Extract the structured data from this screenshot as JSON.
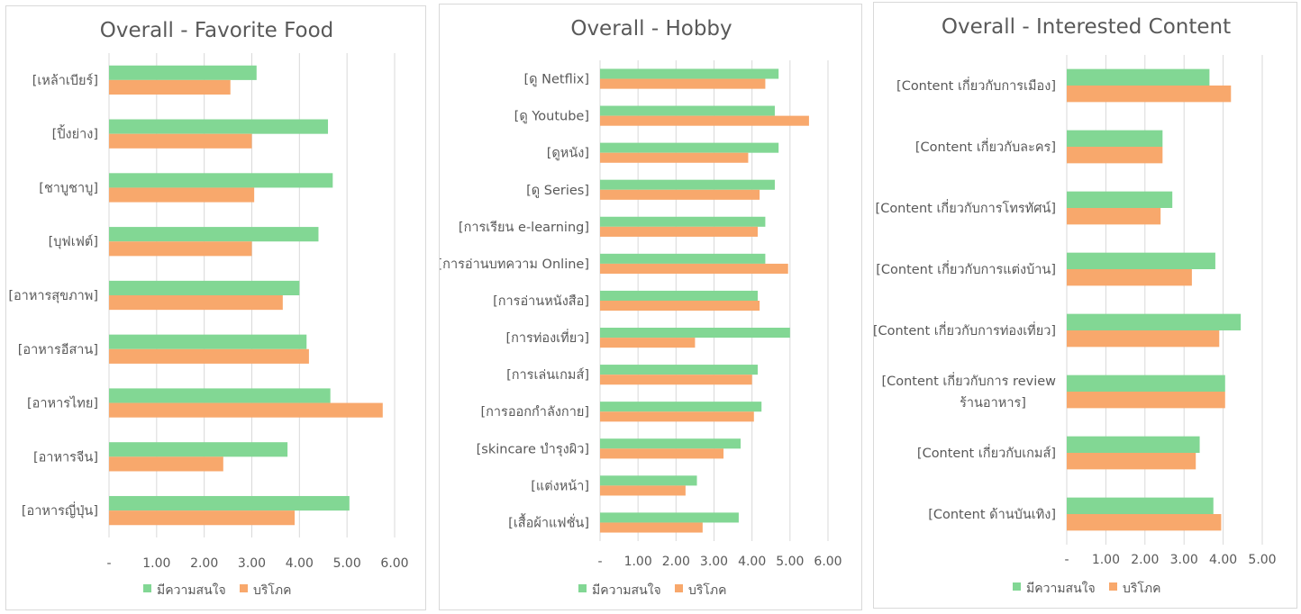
{
  "legend": {
    "interested": "มีความสนใจ",
    "consume": "บริโภค"
  },
  "colors": {
    "interested": "#82d794",
    "consume": "#f8a86c"
  },
  "chart_data": [
    {
      "type": "bar",
      "orientation": "horizontal",
      "title": "Overall - Favorite Food",
      "categories": [
        "[เหล้าเบียร์]",
        "[ปิ้งย่าง]",
        "[ชาบูชาบู]",
        "[บุฟเฟต์]",
        "[อาหารสุขภาพ]",
        "[อาหารอีสาน]",
        "[อาหารไทย]",
        "[อาหารจีน]",
        "[อาหารญี่ปุ่น]"
      ],
      "series": [
        {
          "name": "มีความสนใจ",
          "values": [
            3.1,
            4.6,
            4.7,
            4.4,
            4.0,
            4.15,
            4.65,
            3.75,
            5.05
          ]
        },
        {
          "name": "บริโภค",
          "values": [
            2.55,
            3.0,
            3.05,
            3.0,
            3.65,
            4.2,
            5.75,
            2.4,
            3.9
          ]
        }
      ],
      "xticks": [
        "-",
        "1.00",
        "2.00",
        "3.00",
        "4.00",
        "5.00",
        "6.00"
      ],
      "xlim": [
        0,
        6
      ],
      "grid": true,
      "legend_position": "bottom"
    },
    {
      "type": "bar",
      "orientation": "horizontal",
      "title": "Overall - Hobby",
      "categories": [
        "[ดู Netflix]",
        "[ดู Youtube]",
        "[ดูหนัง]",
        "[ดู Series]",
        "[การเรียน e-learning]",
        "[การอ่านบทความ Online]",
        "[การอ่านหนังสือ]",
        "[การท่องเที่ยว]",
        "[การเล่นเกมส์]",
        "[การออกกำลังกาย]",
        "[skincare บำรุงผิว]",
        "[แต่งหน้า]",
        "[เสื้อผ้าแฟชั่น]"
      ],
      "series": [
        {
          "name": "มีความสนใจ",
          "values": [
            4.7,
            4.6,
            4.7,
            4.6,
            4.35,
            4.35,
            4.15,
            5.0,
            4.15,
            4.25,
            3.7,
            2.55,
            3.65
          ]
        },
        {
          "name": "บริโภค",
          "values": [
            4.35,
            5.5,
            3.9,
            4.2,
            4.15,
            4.95,
            4.2,
            2.5,
            4.0,
            4.05,
            3.25,
            2.25,
            2.7
          ]
        }
      ],
      "xticks": [
        "-",
        "1.00",
        "2.00",
        "3.00",
        "4.00",
        "5.00",
        "6.00"
      ],
      "xlim": [
        0,
        6
      ],
      "grid": true,
      "legend_position": "bottom"
    },
    {
      "type": "bar",
      "orientation": "horizontal",
      "title": "Overall - Interested Content",
      "categories": [
        [
          "[Content เกี่ยวกับการเมือง]"
        ],
        [
          "[Content เกี่ยวกับละคร]"
        ],
        [
          "[Content เกี่ยวกับการโทรทัศน์]"
        ],
        [
          "[Content เกี่ยวกับการแต่งบ้าน]"
        ],
        [
          "[Content เกี่ยวกับการท่องเที่ยว]"
        ],
        [
          "[Content เกี่ยวกับการ review",
          "ร้านอาหาร]"
        ],
        [
          "[Content เกี่ยวกับเกมส์]"
        ],
        [
          "[Content ด้านบันเทิง]"
        ]
      ],
      "series": [
        {
          "name": "มีความสนใจ",
          "values": [
            3.65,
            2.45,
            2.7,
            3.8,
            4.45,
            4.05,
            3.4,
            3.75
          ]
        },
        {
          "name": "บริโภค",
          "values": [
            4.2,
            2.45,
            2.4,
            3.2,
            3.9,
            4.05,
            3.3,
            3.95
          ]
        }
      ],
      "xticks": [
        "-",
        "1.00",
        "2.00",
        "3.00",
        "4.00",
        "5.00"
      ],
      "xlim": [
        0,
        5
      ],
      "grid": true,
      "legend_position": "bottom"
    }
  ]
}
